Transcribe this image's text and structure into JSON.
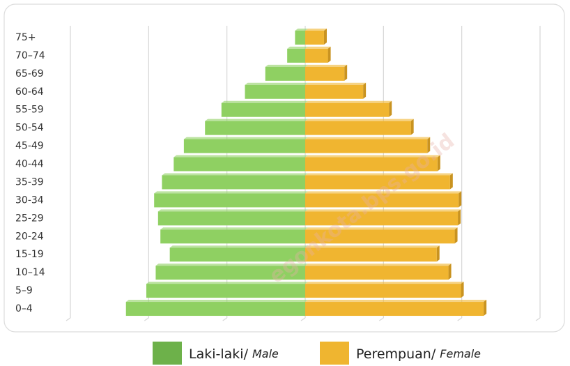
{
  "chart_data": {
    "type": "pyramid",
    "categories": [
      "75+",
      "70–74",
      "65-69",
      "60-64",
      "55-59",
      "50-54",
      "45-49",
      "40-44",
      "35-39",
      "30-34",
      "25-29",
      "20-24",
      "15-19",
      "10–14",
      "5–9",
      "0–4"
    ],
    "series": [
      {
        "name": "Laki-laki/",
        "name_en": "Male",
        "color": "#8fd062",
        "legend_color": "#6db14a",
        "side": "left",
        "values": [
          1.3,
          2.3,
          5.1,
          7.7,
          10.7,
          12.8,
          15.5,
          16.8,
          18.3,
          19.3,
          18.8,
          18.5,
          17.3,
          19.1,
          20.3,
          22.9
        ]
      },
      {
        "name": "Perempuan/",
        "name_en": "Female",
        "color": "#f0b530",
        "legend_color": "#efb530",
        "side": "right",
        "values": [
          2.4,
          2.9,
          5.0,
          7.4,
          10.7,
          13.5,
          15.6,
          16.9,
          18.5,
          19.6,
          19.5,
          19.1,
          16.8,
          18.3,
          19.9,
          22.8
        ]
      }
    ],
    "xlim": [
      -30,
      30
    ],
    "grid_lines": [
      -30,
      -20,
      -10,
      0,
      10,
      20,
      30
    ],
    "grid": true,
    "watermark": "egonkota.bps.go.id"
  }
}
